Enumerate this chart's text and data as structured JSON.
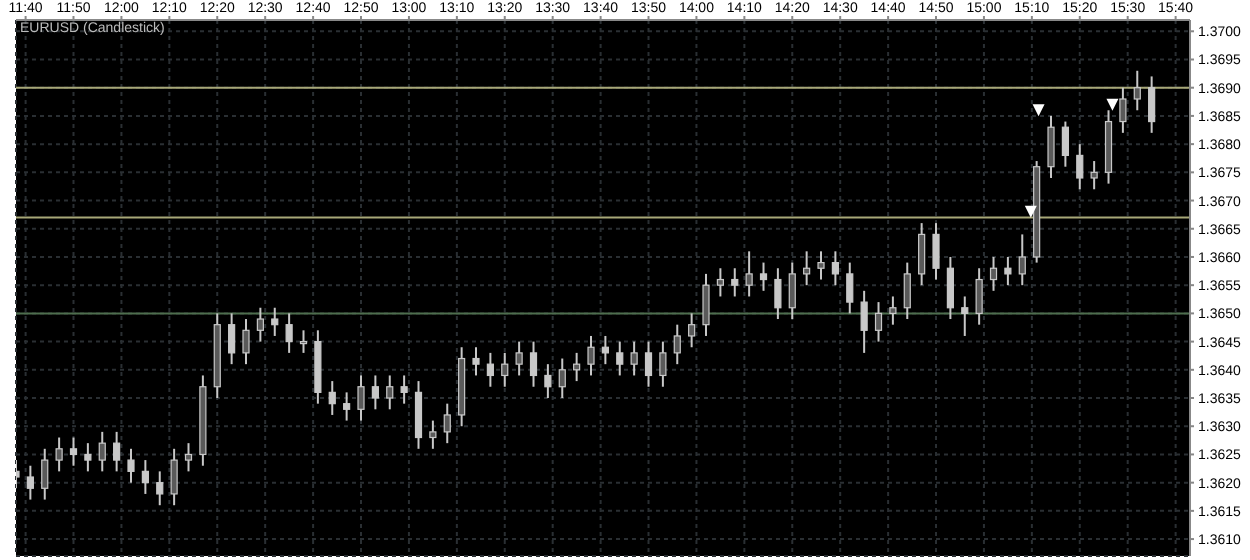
{
  "chart_data": {
    "type": "candlestick",
    "title": "EURUSD (Candlestick)",
    "color": "#c8c8c8",
    "x": [
      11.6333,
      11.6833,
      11.7333,
      11.7833,
      11.8333,
      11.8833,
      11.9333,
      11.9833,
      12.0333,
      12.0833,
      12.1333,
      12.1833,
      12.2333,
      12.2833,
      12.3333,
      12.3833,
      12.4333,
      12.4833,
      12.5333,
      12.5833,
      12.6333,
      12.6833,
      12.7333,
      12.7833,
      12.8333,
      12.8833,
      12.9333,
      12.9833,
      13.0333,
      13.0833,
      13.1333,
      13.1833,
      13.2333,
      13.2833,
      13.3333,
      13.3833,
      13.4333,
      13.4833,
      13.5333,
      13.5833,
      13.6333,
      13.6833,
      13.7333,
      13.7833,
      13.8333,
      13.8833,
      13.9333,
      13.9833,
      14.0333,
      14.0833,
      14.1333,
      14.1833,
      14.2333,
      14.2833,
      14.3333,
      14.3833,
      14.4333,
      14.4833,
      14.5333,
      14.5833,
      14.6333,
      14.6833,
      14.7333,
      14.7833,
      14.8333,
      14.8833,
      14.9333,
      14.9833,
      15.0333,
      15.0833,
      15.1333,
      15.1833,
      15.2333,
      15.2833,
      15.3333,
      15.3833,
      15.4333,
      15.4833,
      15.5333,
      15.5833
    ],
    "ohlc": [
      [
        1.3622,
        1.3624,
        1.3619,
        1.3621
      ],
      [
        1.3621,
        1.3623,
        1.3617,
        1.3619
      ],
      [
        1.3619,
        1.3626,
        1.3617,
        1.3624
      ],
      [
        1.3624,
        1.3628,
        1.3622,
        1.3626
      ],
      [
        1.3626,
        1.3628,
        1.3623,
        1.3625
      ],
      [
        1.3625,
        1.3627,
        1.3622,
        1.3624
      ],
      [
        1.3624,
        1.3629,
        1.3622,
        1.3627
      ],
      [
        1.3627,
        1.3629,
        1.3622,
        1.3624
      ],
      [
        1.3624,
        1.3626,
        1.362,
        1.3622
      ],
      [
        1.3622,
        1.3624,
        1.3618,
        1.362
      ],
      [
        1.362,
        1.3622,
        1.3616,
        1.3618
      ],
      [
        1.3618,
        1.3626,
        1.3616,
        1.3624
      ],
      [
        1.3624,
        1.3627,
        1.3622,
        1.3625
      ],
      [
        1.3625,
        1.3639,
        1.3623,
        1.3637
      ],
      [
        1.3637,
        1.365,
        1.3635,
        1.3648
      ],
      [
        1.3648,
        1.365,
        1.3641,
        1.3643
      ],
      [
        1.3643,
        1.3649,
        1.3641,
        1.3647
      ],
      [
        1.3647,
        1.3651,
        1.3645,
        1.3649
      ],
      [
        1.3649,
        1.3651,
        1.3646,
        1.3648
      ],
      [
        1.3648,
        1.365,
        1.3643,
        1.3645
      ],
      [
        1.3645,
        1.3647,
        1.3643,
        1.3645
      ],
      [
        1.3645,
        1.3647,
        1.3634,
        1.3636
      ],
      [
        1.3636,
        1.3638,
        1.3632,
        1.3634
      ],
      [
        1.3634,
        1.3636,
        1.3631,
        1.3633
      ],
      [
        1.3633,
        1.3639,
        1.3631,
        1.3637
      ],
      [
        1.3637,
        1.3639,
        1.3633,
        1.3635
      ],
      [
        1.3635,
        1.3639,
        1.3633,
        1.3637
      ],
      [
        1.3637,
        1.3639,
        1.3634,
        1.3636
      ],
      [
        1.3636,
        1.3638,
        1.3626,
        1.3628
      ],
      [
        1.3628,
        1.3631,
        1.3626,
        1.3629
      ],
      [
        1.3629,
        1.3634,
        1.3627,
        1.3632
      ],
      [
        1.3632,
        1.3644,
        1.363,
        1.3642
      ],
      [
        1.3642,
        1.3644,
        1.3639,
        1.3641
      ],
      [
        1.3641,
        1.3643,
        1.3637,
        1.3639
      ],
      [
        1.3639,
        1.3643,
        1.3637,
        1.3641
      ],
      [
        1.3641,
        1.3645,
        1.3639,
        1.3643
      ],
      [
        1.3643,
        1.3645,
        1.3637,
        1.3639
      ],
      [
        1.3639,
        1.3641,
        1.3635,
        1.3637
      ],
      [
        1.3637,
        1.3642,
        1.3635,
        1.364
      ],
      [
        1.364,
        1.3643,
        1.3638,
        1.3641
      ],
      [
        1.3641,
        1.3646,
        1.3639,
        1.3644
      ],
      [
        1.3644,
        1.3646,
        1.3641,
        1.3643
      ],
      [
        1.3643,
        1.3645,
        1.3639,
        1.3641
      ],
      [
        1.3641,
        1.3645,
        1.3639,
        1.3643
      ],
      [
        1.3643,
        1.3645,
        1.3637,
        1.3639
      ],
      [
        1.3639,
        1.3645,
        1.3637,
        1.3643
      ],
      [
        1.3643,
        1.3648,
        1.3641,
        1.3646
      ],
      [
        1.3646,
        1.365,
        1.3644,
        1.3648
      ],
      [
        1.3648,
        1.3657,
        1.3646,
        1.3655
      ],
      [
        1.3655,
        1.3658,
        1.3653,
        1.3656
      ],
      [
        1.3656,
        1.3658,
        1.3653,
        1.3655
      ],
      [
        1.3655,
        1.3661,
        1.3653,
        1.3657
      ],
      [
        1.3657,
        1.3659,
        1.3654,
        1.3656
      ],
      [
        1.3656,
        1.3658,
        1.3649,
        1.3651
      ],
      [
        1.3651,
        1.3659,
        1.3649,
        1.3657
      ],
      [
        1.3657,
        1.3661,
        1.3655,
        1.3658
      ],
      [
        1.3658,
        1.3661,
        1.3656,
        1.3659
      ],
      [
        1.3659,
        1.3661,
        1.3655,
        1.3657
      ],
      [
        1.3657,
        1.3659,
        1.365,
        1.3652
      ],
      [
        1.3652,
        1.3654,
        1.3643,
        1.3647
      ],
      [
        1.3647,
        1.3652,
        1.3645,
        1.365
      ],
      [
        1.365,
        1.3653,
        1.3648,
        1.3651
      ],
      [
        1.3651,
        1.3659,
        1.3649,
        1.3657
      ],
      [
        1.3657,
        1.3666,
        1.3655,
        1.3664
      ],
      [
        1.3664,
        1.3666,
        1.3656,
        1.3658
      ],
      [
        1.3658,
        1.366,
        1.3649,
        1.3651
      ],
      [
        1.3651,
        1.3653,
        1.3646,
        1.365
      ],
      [
        1.365,
        1.3658,
        1.3648,
        1.3656
      ],
      [
        1.3656,
        1.366,
        1.3654,
        1.3658
      ],
      [
        1.3658,
        1.366,
        1.3655,
        1.3657
      ],
      [
        1.3657,
        1.3664,
        1.3655,
        1.366
      ],
      [
        1.366,
        1.3677,
        1.3659,
        1.3676
      ],
      [
        1.3676,
        1.3685,
        1.3674,
        1.3683
      ],
      [
        1.3683,
        1.3684,
        1.3676,
        1.3678
      ],
      [
        1.3678,
        1.368,
        1.3672,
        1.3674
      ],
      [
        1.3674,
        1.3677,
        1.3672,
        1.3675
      ],
      [
        1.3675,
        1.3686,
        1.3673,
        1.3684
      ],
      [
        1.3684,
        1.369,
        1.3682,
        1.3688
      ],
      [
        1.3688,
        1.3693,
        1.3686,
        1.369
      ],
      [
        1.369,
        1.3692,
        1.3682,
        1.3684
      ]
    ],
    "series": [
      {
        "type": "scatter",
        "color": "#ffffff",
        "x": [
          15.163,
          15.19,
          15.447
        ],
        "values": [
          1.3668,
          1.3686,
          1.3687
        ]
      }
    ],
    "marker": "triangle",
    "xlim": [
      11.6333,
      15.7167
    ],
    "xticks": [
      {
        "value": 11.6667,
        "label": "11:40"
      },
      {
        "value": 11.8333,
        "label": "11:50"
      },
      {
        "value": 12,
        "label": "12:00"
      },
      {
        "value": 12.1667,
        "label": "12:10"
      },
      {
        "value": 12.3333,
        "label": "12:20"
      },
      {
        "value": 12.5,
        "label": "12:30"
      },
      {
        "value": 12.6667,
        "label": "12:40"
      },
      {
        "value": 12.8333,
        "label": "12:50"
      },
      {
        "value": 13,
        "label": "13:00"
      },
      {
        "value": 13.1667,
        "label": "13:10"
      },
      {
        "value": 13.3333,
        "label": "13:20"
      },
      {
        "value": 13.5,
        "label": "13:30"
      },
      {
        "value": 13.6667,
        "label": "13:40"
      },
      {
        "value": 13.8333,
        "label": "13:50"
      },
      {
        "value": 14,
        "label": "14:00"
      },
      {
        "value": 14.1667,
        "label": "14:10"
      },
      {
        "value": 14.3333,
        "label": "14:20"
      },
      {
        "value": 14.5,
        "label": "14:30"
      },
      {
        "value": 14.6667,
        "label": "14:40"
      },
      {
        "value": 14.8333,
        "label": "14:50"
      },
      {
        "value": 15,
        "label": "15:00"
      },
      {
        "value": 15.1667,
        "label": "15:10"
      },
      {
        "value": 15.3333,
        "label": "15:20"
      },
      {
        "value": 15.5,
        "label": "15:30"
      },
      {
        "value": 15.6667,
        "label": "15:40"
      }
    ],
    "ylim": [
      1.3607,
      1.3702
    ],
    "yticks": [
      {
        "value": 1.361,
        "label": "1.3610"
      },
      1.3615,
      {
        "value": 1.362,
        "label": "1.3620"
      },
      1.3625,
      {
        "value": 1.363,
        "label": "1.3630"
      },
      1.3635,
      {
        "value": 1.364,
        "label": "1.3640"
      },
      1.3645,
      {
        "value": 1.365,
        "label": "1.3650"
      },
      1.3655,
      {
        "value": 1.366,
        "label": "1.3660"
      },
      1.3665,
      {
        "value": 1.367,
        "label": "1.3670"
      },
      1.3675,
      {
        "value": 1.368,
        "label": "1.3680"
      },
      1.3685,
      {
        "value": 1.369,
        "label": "1.3690"
      },
      1.3695,
      {
        "value": 1.37,
        "label": "1.3700"
      }
    ],
    "ref_lines": [
      {
        "axis": "y",
        "value": 1.369,
        "color": "#a8a878"
      },
      {
        "axis": "y",
        "value": 1.3667,
        "color": "#a8a878"
      },
      {
        "axis": "y",
        "value": 1.365,
        "color": "#4e6e4e"
      }
    ],
    "grid": true
  }
}
